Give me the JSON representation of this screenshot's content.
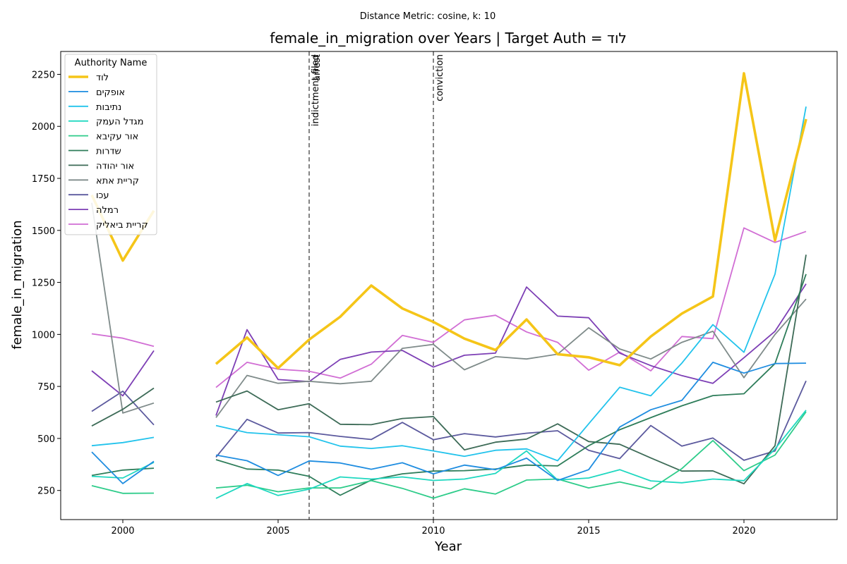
{
  "chart_data": {
    "type": "line",
    "suptitle": "Distance Metric: cosine, k: 10",
    "title": "female_in_migration over Years | Target Auth = לוד",
    "xlabel": "Year",
    "ylabel": "female_in_migration",
    "xlim": [
      1998,
      2023
    ],
    "ylim": [
      110,
      2360
    ],
    "xticks": [
      2000,
      2005,
      2010,
      2015,
      2020
    ],
    "yticks": [
      250,
      500,
      750,
      1000,
      1250,
      1500,
      1750,
      2000,
      2250
    ],
    "grid": false,
    "legend": {
      "title": "Authority Name",
      "position": "upper-left"
    },
    "x": [
      1999,
      2000,
      2001,
      2002,
      2003,
      2004,
      2005,
      2006,
      2007,
      2008,
      2009,
      2010,
      2011,
      2012,
      2013,
      2014,
      2015,
      2016,
      2017,
      2018,
      2019,
      2020,
      2021,
      2022
    ],
    "events": [
      {
        "x": 2006,
        "labels": [
          "indictment filed",
          "arrest"
        ]
      },
      {
        "x": 2010,
        "labels": [
          "conviction"
        ]
      }
    ],
    "series": [
      {
        "name": "לוד",
        "color": "#f5c518",
        "width": 3.6,
        "values": [
          1670,
          1355,
          1595,
          null,
          858,
          985,
          838,
          975,
          1085,
          1235,
          1125,
          1060,
          980,
          925,
          1072,
          905,
          890,
          852,
          990,
          1100,
          1182,
          2255,
          1452,
          2035
        ]
      },
      {
        "name": "אופקים",
        "color": "#1f8de0",
        "width": 1.8,
        "values": [
          435,
          283,
          390,
          null,
          420,
          393,
          322,
          392,
          382,
          352,
          383,
          330,
          372,
          350,
          405,
          298,
          350,
          555,
          638,
          683,
          866,
          814,
          860,
          862
        ]
      },
      {
        "name": "נתיבות",
        "color": "#22c3ec",
        "width": 1.8,
        "values": [
          465,
          480,
          505,
          null,
          562,
          528,
          518,
          508,
          463,
          452,
          465,
          440,
          414,
          443,
          450,
          393,
          570,
          746,
          705,
          862,
          1047,
          914,
          1290,
          2095
        ]
      },
      {
        "name": "מגדל העמק",
        "color": "#1fd8c0",
        "width": 1.8,
        "values": [
          318,
          310,
          385,
          null,
          212,
          283,
          226,
          256,
          315,
          305,
          315,
          298,
          305,
          332,
          440,
          300,
          310,
          350,
          296,
          287,
          305,
          297,
          450,
          636
        ]
      },
      {
        "name": "אור עקיבא",
        "color": "#2ecc8a",
        "width": 1.8,
        "values": [
          273,
          236,
          237,
          null,
          262,
          275,
          244,
          262,
          262,
          297,
          260,
          213,
          258,
          233,
          300,
          305,
          262,
          291,
          257,
          355,
          490,
          345,
          420,
          628
        ]
      },
      {
        "name": "שדרות",
        "color": "#2e7d5a",
        "width": 1.8,
        "values": [
          322,
          348,
          357,
          null,
          398,
          353,
          348,
          318,
          227,
          300,
          330,
          343,
          345,
          353,
          372,
          368,
          465,
          542,
          600,
          657,
          706,
          715,
          860,
          1290
        ]
      },
      {
        "name": "אור יהודה",
        "color": "#3d6b57",
        "width": 1.8,
        "values": [
          560,
          640,
          742,
          null,
          675,
          728,
          638,
          667,
          568,
          566,
          596,
          605,
          445,
          482,
          497,
          570,
          485,
          472,
          406,
          343,
          344,
          282,
          465,
          1383
        ]
      },
      {
        "name": "קריית אתא",
        "color": "#7f8b8a",
        "width": 1.8,
        "values": [
          1632,
          622,
          670,
          null,
          600,
          803,
          765,
          775,
          763,
          775,
          933,
          952,
          830,
          893,
          882,
          905,
          1032,
          930,
          882,
          962,
          1015,
          792,
          1000,
          1170
        ]
      },
      {
        "name": "עכו",
        "color": "#5c5a9e",
        "width": 1.8,
        "values": [
          630,
          727,
          565,
          null,
          410,
          592,
          526,
          528,
          510,
          495,
          577,
          494,
          523,
          507,
          525,
          537,
          443,
          403,
          562,
          463,
          502,
          395,
          440,
          777
        ]
      },
      {
        "name": "רמלה",
        "color": "#7d3fb5",
        "width": 1.8,
        "values": [
          825,
          705,
          922,
          null,
          610,
          1023,
          783,
          773,
          880,
          915,
          923,
          843,
          900,
          910,
          1228,
          1088,
          1080,
          910,
          850,
          802,
          765,
          888,
          1015,
          1243
        ]
      },
      {
        "name": "קריית ביאליק",
        "color": "#d16ed4",
        "width": 1.8,
        "values": [
          1003,
          982,
          943,
          null,
          745,
          866,
          833,
          823,
          790,
          857,
          995,
          962,
          1070,
          1092,
          1012,
          962,
          828,
          915,
          825,
          990,
          980,
          1512,
          1442,
          1495
        ]
      }
    ]
  }
}
